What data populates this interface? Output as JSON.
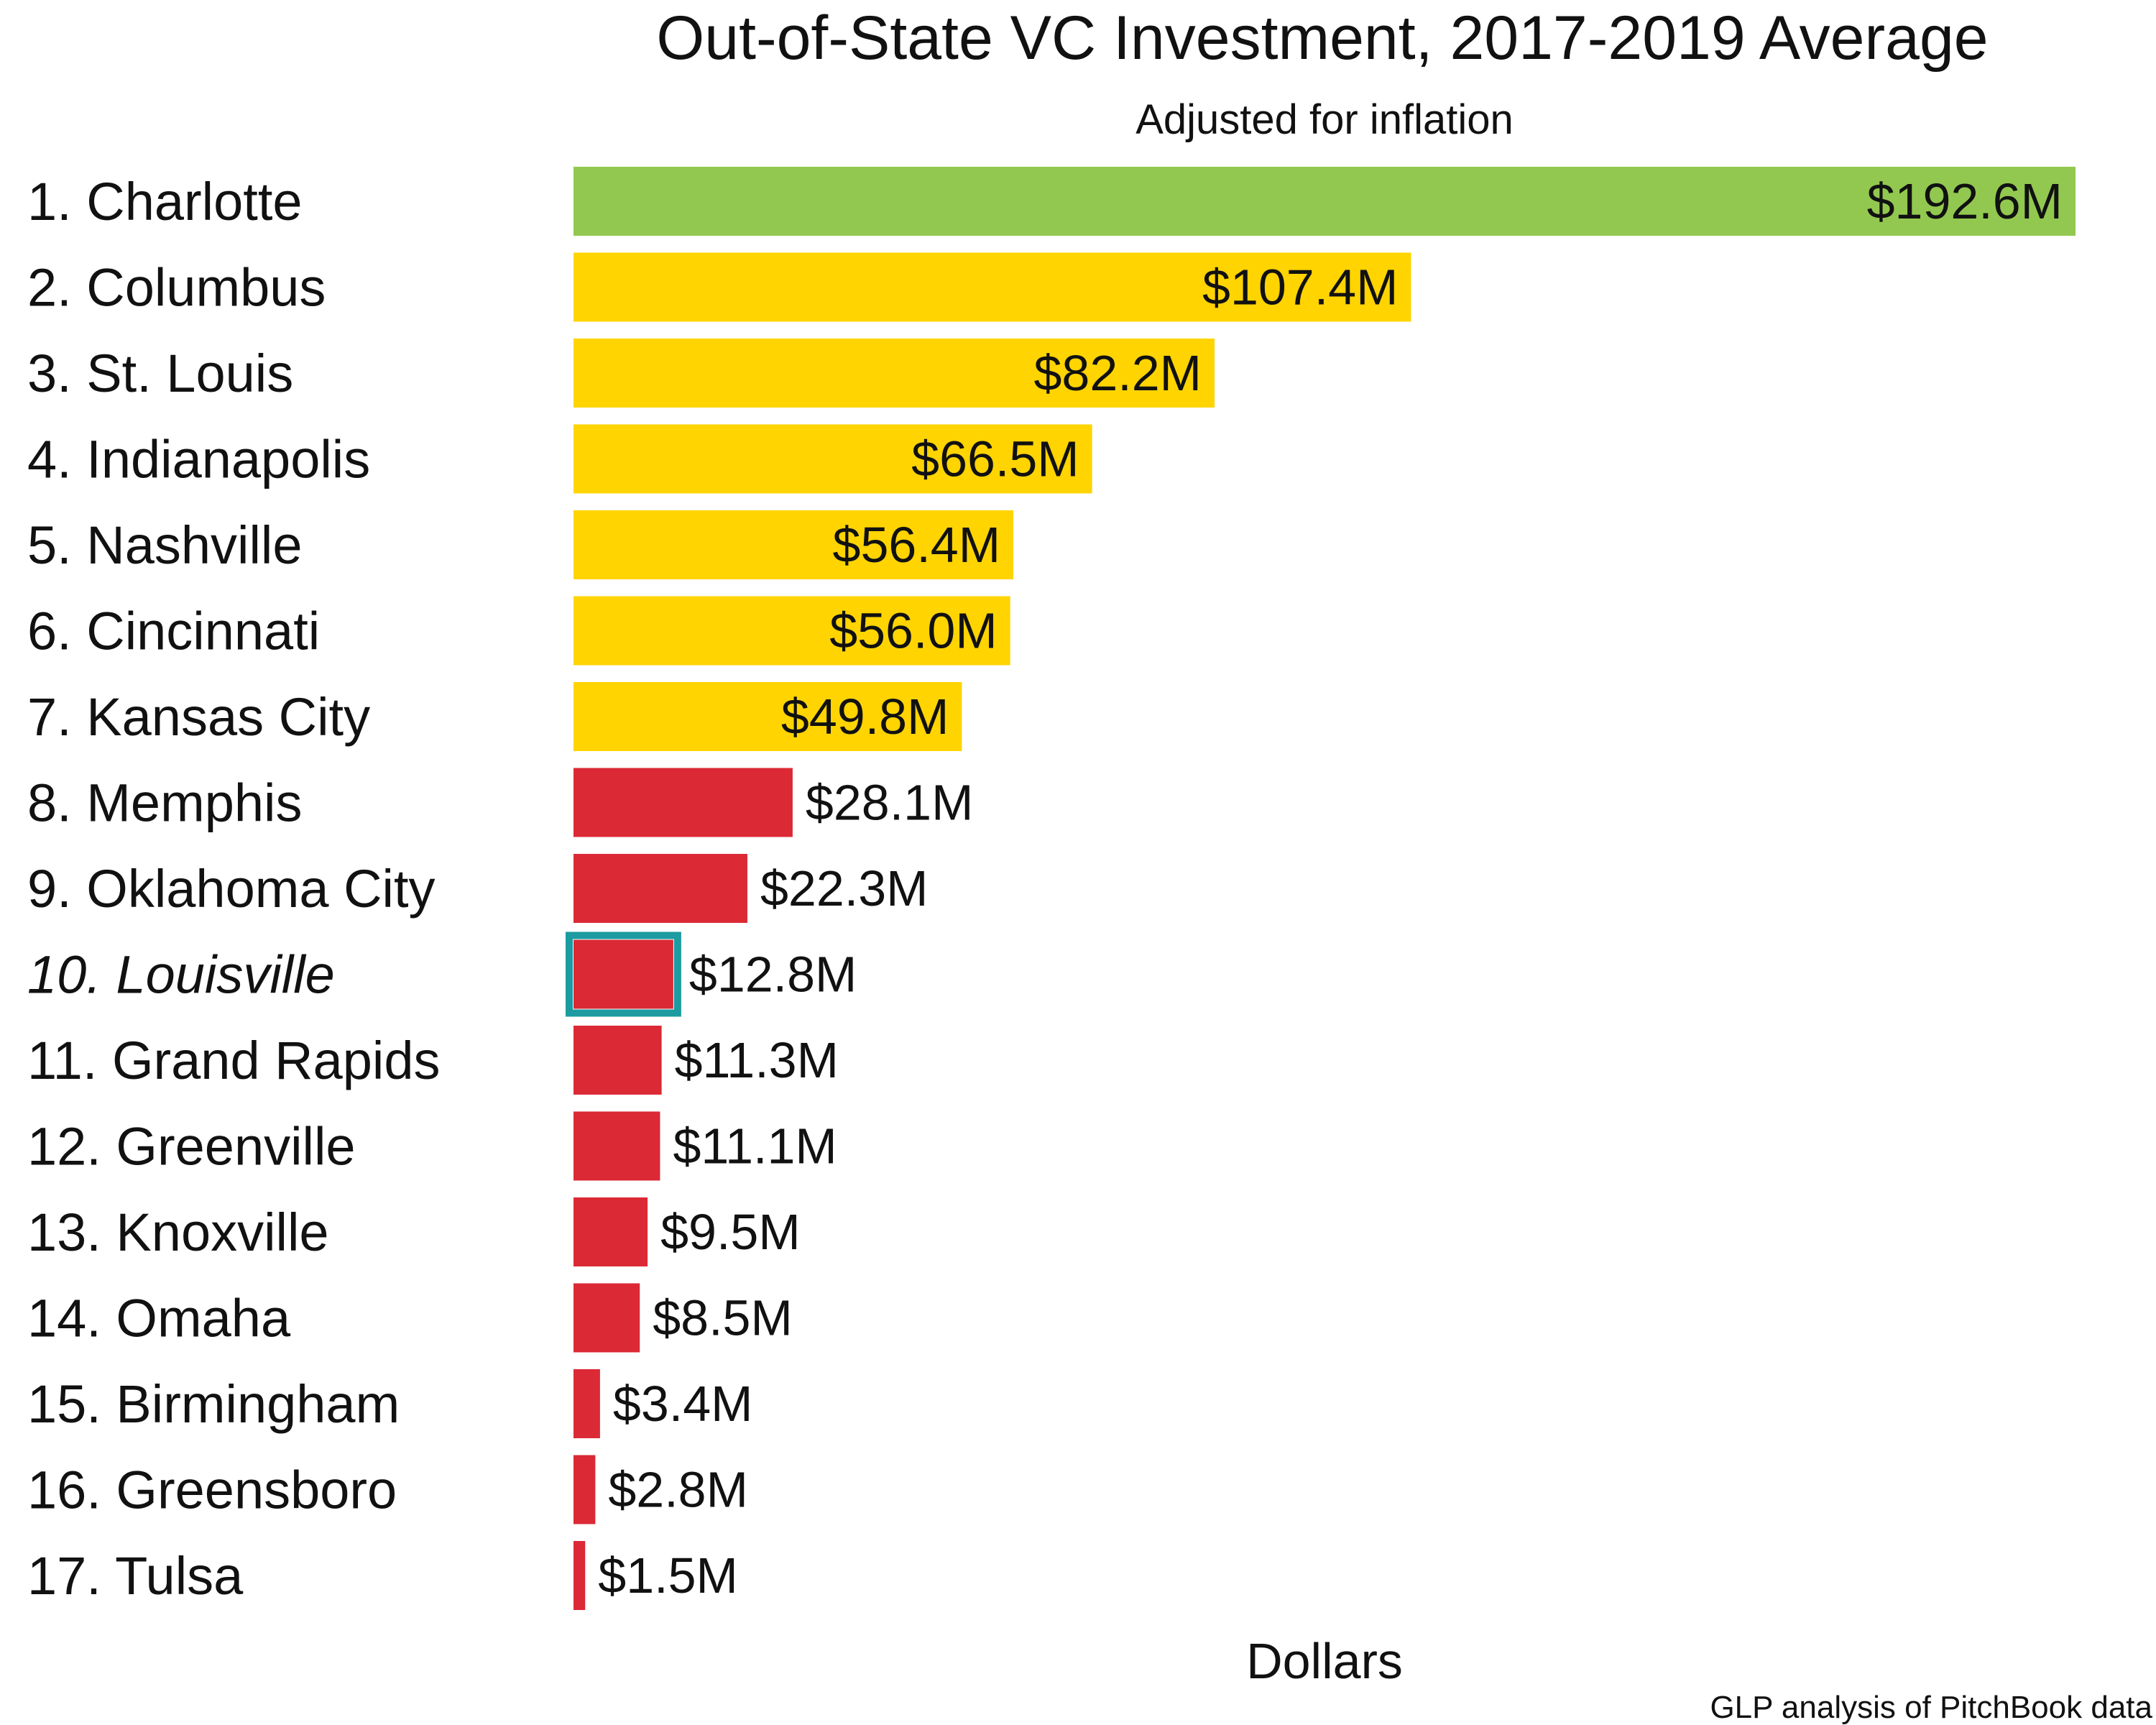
{
  "chart_data": {
    "type": "bar",
    "orientation": "horizontal",
    "title": "Out-of-State VC Investment, 2017-2019 Average",
    "subtitle": "Adjusted for inflation",
    "xlabel": "Dollars",
    "ylabel": "",
    "source": "GLP analysis of PitchBook data",
    "xlim": [
      0,
      192.6
    ],
    "grid": false,
    "legend": "none",
    "highlight_index": 9,
    "colors": {
      "top": "#92C84F",
      "middle": "#FFD400",
      "bottom": "#DB2935",
      "highlight": "#17A2A8",
      "highlight_outline": "#1C9BA0"
    },
    "categories": [
      "1. Charlotte",
      "2. Columbus",
      "3. St. Louis",
      "4. Indianapolis",
      "5. Nashville",
      "6. Cincinnati",
      "7. Kansas City",
      "8. Memphis",
      "9. Oklahoma City",
      "10. Louisville",
      "11. Grand Rapids",
      "12. Greenville",
      "13. Knoxville",
      "14. Omaha",
      "15. Birmingham",
      "16. Greensboro",
      "17. Tulsa"
    ],
    "values": [
      192.6,
      107.4,
      82.2,
      66.5,
      56.4,
      56.0,
      49.8,
      28.1,
      22.3,
      12.8,
      11.3,
      11.1,
      9.5,
      8.5,
      3.4,
      2.8,
      1.5
    ],
    "value_labels": [
      "$192.6M",
      "$107.4M",
      "$82.2M",
      "$66.5M",
      "$56.4M",
      "$56.0M",
      "$49.8M",
      "$28.1M",
      "$22.3M",
      "$12.8M",
      "$11.3M",
      "$11.1M",
      "$9.5M",
      "$8.5M",
      "$3.4M",
      "$2.8M",
      "$1.5M"
    ],
    "tiers": [
      "top",
      "middle",
      "middle",
      "middle",
      "middle",
      "middle",
      "middle",
      "bottom",
      "bottom",
      "bottom",
      "bottom",
      "bottom",
      "bottom",
      "bottom",
      "bottom",
      "bottom",
      "bottom"
    ]
  }
}
